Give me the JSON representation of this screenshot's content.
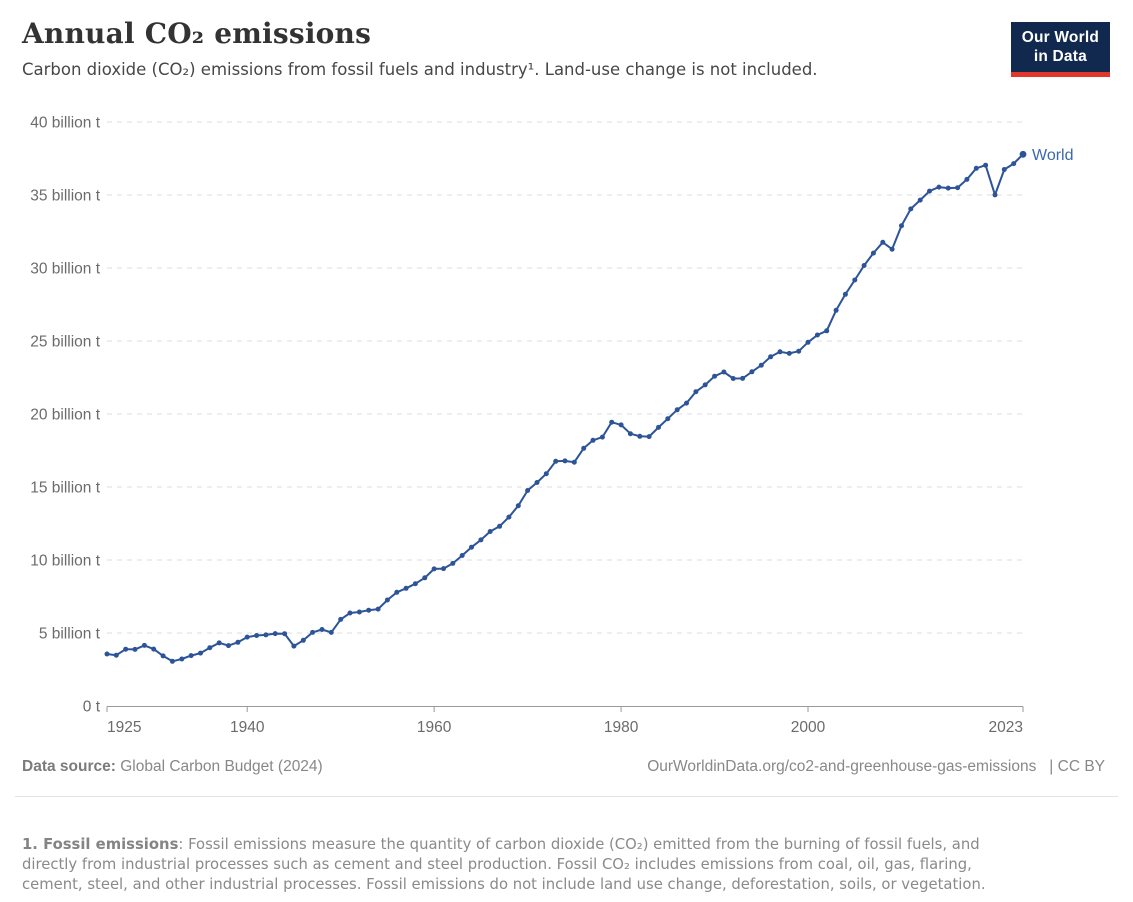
{
  "header": {
    "title": "Annual CO₂ emissions",
    "subtitle": "Carbon dioxide (CO₂) emissions from fossil fuels and industry¹. Land-use change is not included."
  },
  "logo": {
    "line1": "Our World",
    "line2": "in Data",
    "bg_color": "#12294f",
    "stripe_color": "#e0362c"
  },
  "chart_data": {
    "type": "line",
    "title": "Annual CO₂ emissions",
    "xlabel": "",
    "ylabel": "",
    "xlim": [
      1925,
      2023
    ],
    "ylim": [
      0,
      40
    ],
    "grid": "horizontal-dashed",
    "legend_position": "end-of-line-label",
    "x_ticks": [
      {
        "v": 1925,
        "label": "1925",
        "anchor": "start"
      },
      {
        "v": 1940,
        "label": "1940",
        "anchor": "middle"
      },
      {
        "v": 1960,
        "label": "1960",
        "anchor": "middle"
      },
      {
        "v": 1980,
        "label": "1980",
        "anchor": "middle"
      },
      {
        "v": 2000,
        "label": "2000",
        "anchor": "middle"
      },
      {
        "v": 2023,
        "label": "2023",
        "anchor": "end"
      }
    ],
    "y_ticks": [
      {
        "v": 0,
        "label": "0 t"
      },
      {
        "v": 5,
        "label": "5 billion t"
      },
      {
        "v": 10,
        "label": "10 billion t"
      },
      {
        "v": 15,
        "label": "15 billion t"
      },
      {
        "v": 20,
        "label": "20 billion t"
      },
      {
        "v": 25,
        "label": "25 billion t"
      },
      {
        "v": 30,
        "label": "30 billion t"
      },
      {
        "v": 35,
        "label": "35 billion t"
      },
      {
        "v": 40,
        "label": "40 billion t"
      }
    ],
    "unit": "billion t",
    "series": [
      {
        "name": "World",
        "color": "#2d5499",
        "label_color": "#3d68ac",
        "years": [
          1925,
          1926,
          1927,
          1928,
          1929,
          1930,
          1931,
          1932,
          1933,
          1934,
          1935,
          1936,
          1937,
          1938,
          1939,
          1940,
          1941,
          1942,
          1943,
          1944,
          1945,
          1946,
          1947,
          1948,
          1949,
          1950,
          1951,
          1952,
          1953,
          1954,
          1955,
          1956,
          1957,
          1958,
          1959,
          1960,
          1961,
          1962,
          1963,
          1964,
          1965,
          1966,
          1967,
          1968,
          1969,
          1970,
          1971,
          1972,
          1973,
          1974,
          1975,
          1976,
          1977,
          1978,
          1979,
          1980,
          1981,
          1982,
          1983,
          1984,
          1985,
          1986,
          1987,
          1988,
          1989,
          1990,
          1991,
          1992,
          1993,
          1994,
          1995,
          1996,
          1997,
          1998,
          1999,
          2000,
          2001,
          2002,
          2003,
          2004,
          2005,
          2006,
          2007,
          2008,
          2009,
          2010,
          2011,
          2012,
          2013,
          2014,
          2015,
          2016,
          2017,
          2018,
          2019,
          2020,
          2021,
          2022,
          2023
        ],
        "values": [
          3.56,
          3.48,
          3.89,
          3.88,
          4.15,
          3.9,
          3.43,
          3.06,
          3.22,
          3.45,
          3.62,
          3.99,
          4.32,
          4.14,
          4.36,
          4.72,
          4.83,
          4.87,
          4.96,
          4.95,
          4.1,
          4.5,
          5.04,
          5.24,
          5.04,
          5.93,
          6.37,
          6.44,
          6.56,
          6.64,
          7.26,
          7.79,
          8.06,
          8.38,
          8.78,
          9.39,
          9.41,
          9.77,
          10.31,
          10.88,
          11.38,
          11.95,
          12.31,
          12.94,
          13.72,
          14.76,
          15.31,
          15.91,
          16.76,
          16.79,
          16.7,
          17.65,
          18.2,
          18.42,
          19.44,
          19.25,
          18.65,
          18.47,
          18.45,
          19.08,
          19.68,
          20.29,
          20.75,
          21.53,
          21.99,
          22.59,
          22.88,
          22.43,
          22.44,
          22.89,
          23.34,
          23.92,
          24.26,
          24.15,
          24.3,
          24.91,
          25.41,
          25.7,
          27.1,
          28.2,
          29.18,
          30.17,
          31.02,
          31.76,
          31.29,
          32.9,
          34.05,
          34.65,
          35.27,
          35.54,
          35.47,
          35.5,
          36.07,
          36.83,
          37.04,
          35.01,
          36.75,
          37.15,
          37.79
        ]
      }
    ]
  },
  "footer": {
    "source_label": "Data source:",
    "source": "Global Carbon Budget (2024)",
    "link": "OurWorldinData.org/co2-and-greenhouse-gas-emissions",
    "separator": "|",
    "license": "CC BY"
  },
  "footnote": {
    "label": "1. Fossil emissions",
    "text": ": Fossil emissions measure the quantity of carbon dioxide (CO₂) emitted from the burning of fossil fuels, and directly from industrial processes such as cement and steel production. Fossil CO₂ includes emissions from coal, oil, gas, flaring, cement, steel, and other industrial processes. Fossil emissions do not include land use change, deforestation, soils, or vegetation."
  }
}
